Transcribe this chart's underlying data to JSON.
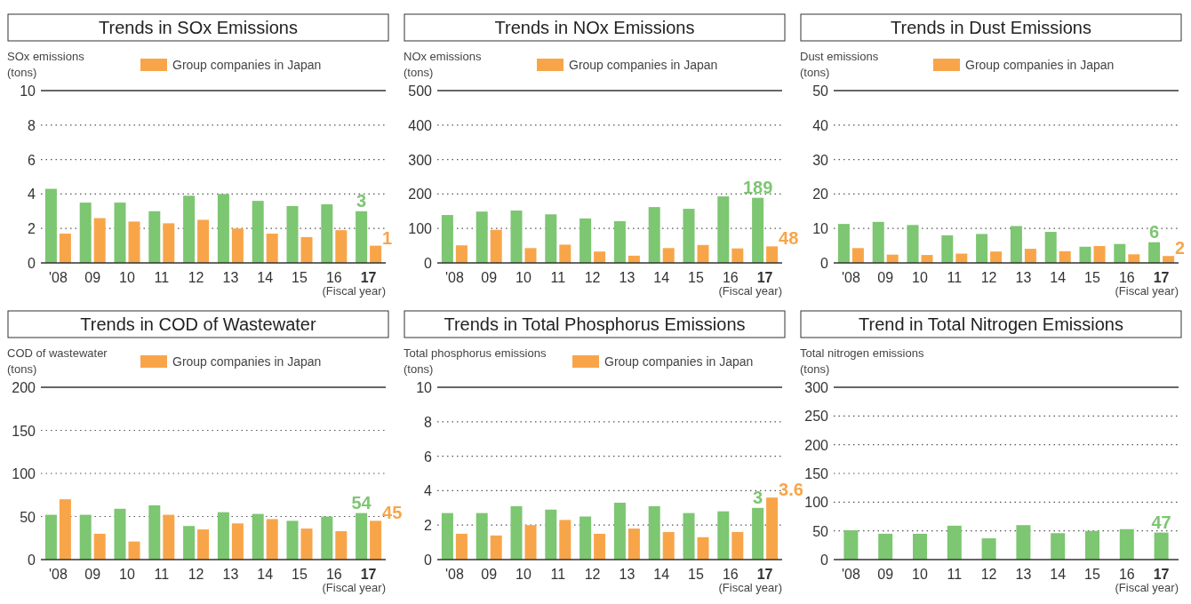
{
  "chart_data": [
    {
      "type": "bar",
      "title": "Trends in SOx Emissions",
      "ylabel": "SOx emissions\n(tons)",
      "xlabel": "(Fiscal year)",
      "categories": [
        "'08",
        "09",
        "10",
        "11",
        "12",
        "13",
        "14",
        "15",
        "16",
        "17"
      ],
      "ylim": [
        0,
        10
      ],
      "yticks": [
        0,
        2,
        4,
        6,
        8,
        10
      ],
      "grid": "y",
      "legend": "top",
      "series": [
        {
          "color": "#7dc672",
          "values": [
            4.3,
            3.5,
            3.5,
            3.0,
            3.9,
            4.0,
            3.6,
            3.3,
            3.4,
            3
          ],
          "value_labels": [
            null,
            null,
            null,
            null,
            null,
            null,
            null,
            null,
            null,
            "3"
          ]
        },
        {
          "name": "Group companies in Japan",
          "color": "#f8a54a",
          "values": [
            1.7,
            2.6,
            2.4,
            2.3,
            2.5,
            2.0,
            1.7,
            1.5,
            1.9,
            1
          ],
          "value_labels": [
            null,
            null,
            null,
            null,
            null,
            null,
            null,
            null,
            null,
            "1"
          ]
        }
      ]
    },
    {
      "type": "bar",
      "title": "Trends in NOx Emissions",
      "ylabel": "NOx emissions\n(tons)",
      "xlabel": "(Fiscal year)",
      "categories": [
        "'08",
        "09",
        "10",
        "11",
        "12",
        "13",
        "14",
        "15",
        "16",
        "17"
      ],
      "ylim": [
        0,
        500
      ],
      "yticks": [
        0,
        100,
        200,
        300,
        400,
        500
      ],
      "grid": "y",
      "legend": "top",
      "series": [
        {
          "color": "#7dc672",
          "values": [
            139,
            149,
            152,
            141,
            129,
            121,
            162,
            157,
            193,
            189
          ],
          "value_labels": [
            null,
            null,
            null,
            null,
            null,
            null,
            null,
            null,
            null,
            "189"
          ]
        },
        {
          "name": "Group companies in Japan",
          "color": "#f8a54a",
          "values": [
            51,
            96,
            43,
            53,
            33,
            21,
            43,
            52,
            42,
            48
          ],
          "value_labels": [
            null,
            null,
            null,
            null,
            null,
            null,
            null,
            null,
            null,
            "48"
          ]
        }
      ]
    },
    {
      "type": "bar",
      "title": "Trends in Dust Emissions",
      "ylabel": "Dust emissions\n(tons)",
      "xlabel": "(Fiscal year)",
      "categories": [
        "'08",
        "09",
        "10",
        "11",
        "12",
        "13",
        "14",
        "15",
        "16",
        "17"
      ],
      "ylim": [
        0,
        50
      ],
      "yticks": [
        0,
        10,
        20,
        30,
        40,
        50
      ],
      "grid": "y",
      "legend": "top",
      "series": [
        {
          "color": "#7dc672",
          "values": [
            11.3,
            11.9,
            11.0,
            8.0,
            8.4,
            10.7,
            9.0,
            4.7,
            5.5,
            6
          ],
          "value_labels": [
            null,
            null,
            null,
            null,
            null,
            null,
            null,
            null,
            null,
            "6"
          ]
        },
        {
          "name": "Group companies in Japan",
          "color": "#f8a54a",
          "values": [
            4.3,
            2.4,
            2.3,
            2.7,
            3.3,
            4.1,
            3.4,
            4.9,
            2.5,
            2
          ],
          "value_labels": [
            null,
            null,
            null,
            null,
            null,
            null,
            null,
            null,
            null,
            "2"
          ]
        }
      ]
    },
    {
      "type": "bar",
      "title": "Trends in COD of Wastewater",
      "ylabel": "COD of wastewater\n(tons)",
      "xlabel": "(Fiscal year)",
      "categories": [
        "'08",
        "09",
        "10",
        "11",
        "12",
        "13",
        "14",
        "15",
        "16",
        "17"
      ],
      "ylim": [
        0,
        200
      ],
      "yticks": [
        0,
        50,
        100,
        150,
        200
      ],
      "grid": "y",
      "legend": "top",
      "series": [
        {
          "color": "#7dc672",
          "values": [
            52,
            52,
            59,
            63,
            39,
            55,
            53,
            45,
            50,
            54
          ],
          "value_labels": [
            null,
            null,
            null,
            null,
            null,
            null,
            null,
            null,
            null,
            "54"
          ]
        },
        {
          "name": "Group companies in Japan",
          "color": "#f8a54a",
          "values": [
            70,
            30,
            21,
            52,
            35,
            42,
            47,
            36,
            33,
            45
          ],
          "value_labels": [
            null,
            null,
            null,
            null,
            null,
            null,
            null,
            null,
            null,
            "45"
          ]
        }
      ]
    },
    {
      "type": "bar",
      "title": "Trends in Total Phosphorus Emissions",
      "ylabel": "Total phosphorus emissions\n(tons)",
      "xlabel": "(Fiscal year)",
      "categories": [
        "'08",
        "09",
        "10",
        "11",
        "12",
        "13",
        "14",
        "15",
        "16",
        "17"
      ],
      "ylim": [
        0,
        10
      ],
      "yticks": [
        0,
        2,
        4,
        6,
        8,
        10
      ],
      "grid": "y",
      "legend": "top",
      "series": [
        {
          "color": "#7dc672",
          "values": [
            2.7,
            2.7,
            3.1,
            2.9,
            2.5,
            3.3,
            3.1,
            2.7,
            2.8,
            3
          ],
          "value_labels": [
            null,
            null,
            null,
            null,
            null,
            null,
            null,
            null,
            null,
            "3"
          ]
        },
        {
          "name": "Group companies in Japan",
          "color": "#f8a54a",
          "values": [
            1.5,
            1.4,
            2.0,
            2.3,
            1.5,
            1.8,
            1.6,
            1.3,
            1.6,
            3.6
          ],
          "value_labels": [
            null,
            null,
            null,
            null,
            null,
            null,
            null,
            null,
            null,
            "3.6"
          ]
        }
      ]
    },
    {
      "type": "bar",
      "title": "Trend in Total Nitrogen Emissions",
      "ylabel": "Total nitrogen emissions\n(tons)",
      "xlabel": "(Fiscal year)",
      "categories": [
        "'08",
        "09",
        "10",
        "11",
        "12",
        "13",
        "14",
        "15",
        "16",
        "17"
      ],
      "ylim": [
        0,
        300
      ],
      "yticks": [
        0,
        50,
        100,
        150,
        200,
        250,
        300
      ],
      "grid": "y",
      "series": [
        {
          "color": "#7dc672",
          "values": [
            51,
            45,
            45,
            59,
            37,
            60,
            46,
            50,
            53,
            47
          ],
          "value_labels": [
            null,
            null,
            null,
            null,
            null,
            null,
            null,
            null,
            null,
            "47"
          ]
        }
      ]
    }
  ]
}
